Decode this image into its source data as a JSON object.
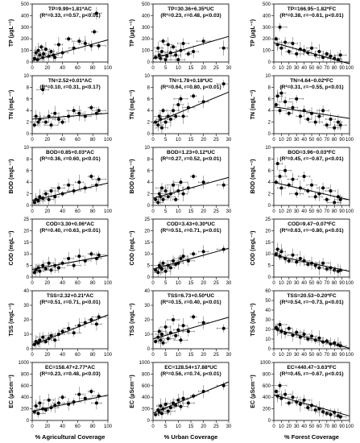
{
  "chart_data": [
    {
      "type": "scatter",
      "ylabel": "TP (μgL⁻¹)",
      "eq1": "TP=9.99+1.81*AC",
      "eq2": "(R²=0.33, r=0.57, p<0.01)",
      "xlim": [
        0,
        100
      ],
      "xticks": [
        0,
        20,
        40,
        60,
        80,
        100
      ],
      "ylim": [
        0,
        500
      ],
      "yticks": [
        0,
        100,
        200,
        300,
        400,
        500
      ],
      "x": [
        3,
        5,
        7,
        8,
        10,
        12,
        14,
        15,
        18,
        22,
        25,
        28,
        30,
        35,
        40,
        48,
        55,
        62,
        70,
        78,
        82,
        85,
        88
      ],
      "y": [
        30,
        80,
        20,
        100,
        60,
        130,
        40,
        70,
        110,
        50,
        90,
        60,
        40,
        150,
        80,
        200,
        120,
        180,
        160,
        140,
        260,
        420,
        140
      ],
      "line": [
        9.99,
        1.81
      ]
    },
    {
      "type": "scatter",
      "ylabel": "TP (μgL⁻¹)",
      "eq1": "TP=30.36+6.35*UC",
      "eq2": "(R²=0.23, r=0.48, p<0.03)",
      "xlim": [
        0,
        30
      ],
      "xticks": [
        0,
        5,
        10,
        15,
        20,
        25,
        30
      ],
      "ylim": [
        0,
        500
      ],
      "yticks": [
        0,
        100,
        200,
        300,
        400,
        500
      ],
      "x": [
        1,
        2,
        2.5,
        3,
        3.5,
        4,
        5,
        5.5,
        6,
        7,
        8,
        9,
        10,
        11,
        12,
        14,
        16,
        20,
        28
      ],
      "y": [
        40,
        120,
        60,
        30,
        90,
        180,
        20,
        50,
        150,
        80,
        130,
        60,
        20,
        100,
        160,
        70,
        90,
        180,
        120
      ],
      "line": [
        30.36,
        6.35
      ]
    },
    {
      "type": "scatter",
      "ylabel": "TP (μgL⁻¹)",
      "eq1": "TP=166.95−1.82*FC",
      "eq2": "(R²=0.38, r=−0.61, p<0.01)",
      "xlim": [
        0,
        100
      ],
      "xticks": [
        0,
        10,
        20,
        30,
        40,
        50,
        60,
        70,
        80,
        90,
        100
      ],
      "ylim": [
        0,
        500
      ],
      "yticks": [
        0,
        100,
        200,
        300,
        400,
        500
      ],
      "x": [
        3,
        5,
        8,
        10,
        15,
        20,
        25,
        30,
        35,
        40,
        45,
        50,
        55,
        60,
        65,
        70,
        75,
        80,
        85,
        88
      ],
      "y": [
        200,
        150,
        300,
        120,
        170,
        90,
        160,
        70,
        110,
        100,
        80,
        120,
        60,
        90,
        40,
        70,
        50,
        30,
        20,
        60
      ],
      "line": [
        166.95,
        -1.82
      ]
    },
    {
      "type": "scatter",
      "ylabel": "TN (mgL⁻¹)",
      "eq1": "TN=2.52+0.01*AC",
      "eq2": "(R²=0.10, r=0.31, p<0.17)",
      "xlim": [
        0,
        100
      ],
      "xticks": [
        0,
        20,
        40,
        60,
        80,
        100
      ],
      "ylim": [
        0,
        10
      ],
      "yticks": [
        0,
        2,
        4,
        6,
        8,
        10
      ],
      "x": [
        3,
        5,
        8,
        10,
        14,
        18,
        22,
        25,
        30,
        35,
        40,
        48,
        55,
        62,
        70,
        78,
        85,
        88
      ],
      "y": [
        1.5,
        3,
        2,
        2.5,
        7.6,
        2,
        3,
        1.5,
        3.5,
        2.5,
        2,
        3,
        4,
        3.5,
        3,
        4.5,
        3.5,
        4
      ],
      "line": [
        2.52,
        0.01
      ]
    },
    {
      "type": "scatter",
      "ylabel": "TN (mgL⁻¹)",
      "eq1": "TN=1.78+0.18*UC",
      "eq2": "(R²=0.64, r=0.80, p<0.01)",
      "xlim": [
        0,
        30
      ],
      "xticks": [
        0,
        5,
        10,
        15,
        20,
        25,
        30
      ],
      "ylim": [
        0,
        10
      ],
      "yticks": [
        0,
        2,
        4,
        6,
        8,
        10
      ],
      "x": [
        1,
        2,
        2.5,
        3,
        3.5,
        4,
        5,
        6,
        7,
        8,
        9,
        10,
        11,
        12,
        14,
        16,
        20,
        28
      ],
      "y": [
        2,
        1.5,
        3,
        2.5,
        1,
        4,
        2,
        3,
        2.5,
        4,
        3,
        5,
        6,
        3,
        4.5,
        6.5,
        5.5,
        8.6
      ],
      "line": [
        1.78,
        0.18
      ]
    },
    {
      "type": "scatter",
      "ylabel": "TN (mgL⁻¹)",
      "eq1": "TN=4.64−0.02*FC",
      "eq2": "(R²=0.31, r=−0.55, p<0.01)",
      "xlim": [
        0,
        100
      ],
      "xticks": [
        0,
        10,
        20,
        30,
        40,
        50,
        60,
        70,
        80,
        90,
        100
      ],
      "ylim": [
        0,
        10
      ],
      "yticks": [
        0,
        2,
        4,
        6,
        8,
        10
      ],
      "x": [
        3,
        5,
        8,
        10,
        15,
        20,
        25,
        30,
        35,
        40,
        45,
        50,
        55,
        60,
        65,
        70,
        75,
        80,
        85,
        88
      ],
      "y": [
        5,
        6.5,
        4,
        7,
        5.5,
        3.5,
        4.5,
        6,
        3,
        4,
        2.5,
        3.5,
        2,
        3,
        4,
        1.5,
        2.5,
        1,
        2,
        1.5
      ],
      "line": [
        4.64,
        -0.02
      ]
    },
    {
      "type": "scatter",
      "ylabel": "BOD (mgL⁻¹)",
      "eq1": "BOD=0.85+0.03*AC",
      "eq2": "(R²=0.36, r=0.60, p<0.01)",
      "xlim": [
        0,
        100
      ],
      "xticks": [
        0,
        20,
        40,
        60,
        80,
        100
      ],
      "ylim": [
        0,
        10
      ],
      "yticks": [
        0,
        2,
        4,
        6,
        8,
        10
      ],
      "x": [
        3,
        5,
        8,
        10,
        14,
        18,
        22,
        25,
        30,
        35,
        40,
        48,
        55,
        62,
        70,
        78,
        85,
        88
      ],
      "y": [
        0.5,
        1,
        0.8,
        1.5,
        1.2,
        2,
        1,
        2.5,
        1.5,
        3,
        2,
        3.5,
        2.5,
        4,
        3,
        5,
        3.5,
        4.5
      ],
      "line": [
        0.85,
        0.03
      ]
    },
    {
      "type": "scatter",
      "ylabel": "BOD (mgL⁻¹)",
      "eq1": "BOD=1.23+0.12*UC",
      "eq2": "(R²=0.27, r=0.52, p<0.01)",
      "xlim": [
        0,
        30
      ],
      "xticks": [
        0,
        5,
        10,
        15,
        20,
        25,
        30
      ],
      "ylim": [
        0,
        10
      ],
      "yticks": [
        0,
        2,
        4,
        6,
        8,
        10
      ],
      "x": [
        1,
        2,
        2.5,
        3,
        3.5,
        4,
        5,
        6,
        7,
        8,
        9,
        10,
        11,
        12,
        14,
        16,
        20,
        28
      ],
      "y": [
        1,
        0.5,
        2,
        1.5,
        3,
        1,
        2.5,
        1.5,
        2,
        3.5,
        1,
        2.5,
        4,
        2,
        3,
        5,
        4,
        3.5
      ],
      "line": [
        1.23,
        0.12
      ]
    },
    {
      "type": "scatter",
      "ylabel": "BOD (mgL⁻¹)",
      "eq1": "BOD=3.96−0.03*FC",
      "eq2": "(R²=0.45, r=−0.67, p<0.01)",
      "xlim": [
        0,
        100
      ],
      "xticks": [
        0,
        10,
        20,
        30,
        40,
        50,
        60,
        70,
        80,
        90,
        100
      ],
      "ylim": [
        0,
        10
      ],
      "yticks": [
        0,
        2,
        4,
        6,
        8,
        10
      ],
      "x": [
        3,
        5,
        8,
        10,
        15,
        20,
        25,
        30,
        35,
        40,
        45,
        50,
        55,
        60,
        65,
        70,
        75,
        80,
        85,
        88
      ],
      "y": [
        4,
        7.2,
        5,
        3,
        6,
        3.5,
        4.5,
        2,
        3,
        5,
        2.5,
        3.5,
        1.5,
        2,
        3,
        1,
        2.5,
        0.5,
        1.5,
        1
      ],
      "line": [
        3.96,
        -0.03
      ]
    },
    {
      "type": "scatter",
      "ylabel": "COD (mgL⁻¹)",
      "eq1": "COD=3.30+0.06*AC",
      "eq2": "(R²=0.40, r=0.63, p<0.01)",
      "xlim": [
        0,
        100
      ],
      "xticks": [
        0,
        20,
        40,
        60,
        80,
        100
      ],
      "ylim": [
        0,
        25
      ],
      "yticks": [
        0,
        5,
        10,
        15,
        20,
        25
      ],
      "x": [
        3,
        5,
        8,
        10,
        14,
        18,
        22,
        25,
        30,
        35,
        40,
        48,
        55,
        62,
        70,
        78,
        85,
        88
      ],
      "y": [
        2,
        3,
        4,
        2.5,
        5,
        3.5,
        6,
        3,
        5,
        4,
        6,
        8,
        5,
        9,
        7,
        10,
        8,
        9.5
      ],
      "line": [
        3.3,
        0.06
      ]
    },
    {
      "type": "scatter",
      "ylabel": "COD (mgL⁻¹)",
      "eq1": "COD=3.43+0.30*UC",
      "eq2": "(R²=0.51, r=0.71, p<0.01)",
      "xlim": [
        0,
        30
      ],
      "xticks": [
        0,
        5,
        10,
        15,
        20,
        25,
        30
      ],
      "ylim": [
        0,
        25
      ],
      "yticks": [
        0,
        5,
        10,
        15,
        20,
        25
      ],
      "x": [
        1,
        2,
        2.5,
        3,
        3.5,
        4,
        5,
        6,
        7,
        8,
        9,
        10,
        11,
        12,
        14,
        16,
        20,
        28
      ],
      "y": [
        3,
        2,
        5,
        4,
        3.5,
        6,
        2.5,
        5,
        4,
        7,
        5.5,
        6,
        8,
        9,
        7,
        10,
        11,
        12
      ],
      "line": [
        3.43,
        0.3
      ]
    },
    {
      "type": "scatter",
      "ylabel": "COD (mgL⁻¹)",
      "eq1": "COD=9.47−0.07*FC",
      "eq2": "(R²=0.63, r=−0.80, p<0.01)",
      "xlim": [
        0,
        100
      ],
      "xticks": [
        0,
        10,
        20,
        30,
        40,
        50,
        60,
        70,
        80,
        90,
        100
      ],
      "ylim": [
        0,
        25
      ],
      "yticks": [
        0,
        5,
        10,
        15,
        20,
        25
      ],
      "x": [
        3,
        5,
        8,
        10,
        15,
        20,
        25,
        30,
        35,
        40,
        45,
        50,
        55,
        60,
        65,
        70,
        75,
        80,
        85,
        88
      ],
      "y": [
        10,
        12,
        9,
        11,
        8,
        7,
        9.5,
        6.5,
        8,
        7,
        5.5,
        6,
        5,
        4,
        6,
        3.5,
        4,
        3,
        2.5,
        3
      ],
      "line": [
        9.47,
        -0.07
      ]
    },
    {
      "type": "scatter",
      "ylabel": "TSS (mgL⁻¹)",
      "eq1": "TSS=2.32+0.21*AC",
      "eq2": "(R²=0.51, r=0.71, p<0.01)",
      "xlim": [
        0,
        100
      ],
      "xticks": [
        0,
        20,
        40,
        60,
        80,
        100
      ],
      "ylim": [
        0,
        40
      ],
      "yticks": [
        0,
        10,
        20,
        30,
        40
      ],
      "x": [
        3,
        5,
        8,
        10,
        14,
        18,
        22,
        25,
        30,
        35,
        40,
        48,
        55,
        62,
        70,
        78,
        85,
        88
      ],
      "y": [
        3,
        5,
        4,
        6,
        8,
        5,
        7,
        9,
        6,
        10,
        12,
        14,
        11,
        16,
        18,
        20,
        17,
        22
      ],
      "line": [
        2.32,
        0.21
      ]
    },
    {
      "type": "scatter",
      "ylabel": "TSS (mgL⁻¹)",
      "eq1": "TSS=6.73+0.50*UC",
      "eq2": "(R²=0.15, r=0.40, p<0.01)",
      "xlim": [
        0,
        30
      ],
      "xticks": [
        0,
        5,
        10,
        15,
        20,
        25,
        30
      ],
      "ylim": [
        0,
        40
      ],
      "yticks": [
        0,
        10,
        20,
        30,
        40
      ],
      "x": [
        1,
        2,
        2.5,
        3,
        3.5,
        4,
        5,
        6,
        7,
        8,
        9,
        10,
        11,
        12,
        14,
        16,
        20,
        28
      ],
      "y": [
        5,
        8,
        12,
        6,
        10,
        4,
        15,
        7,
        11,
        20,
        9,
        13,
        6,
        16,
        12,
        22,
        18,
        14
      ],
      "line": [
        6.73,
        0.5
      ]
    },
    {
      "type": "scatter",
      "ylabel": "TSS (mgL⁻¹)",
      "eq1": "TSS=20.53−0.20*FC",
      "eq2": "(R²=0.54, r=−0.73, p<0.01)",
      "xlim": [
        0,
        100
      ],
      "xticks": [
        0,
        10,
        20,
        30,
        40,
        50,
        60,
        70,
        80,
        90,
        100
      ],
      "ylim": [
        0,
        60
      ],
      "yticks": [
        0,
        10,
        20,
        30,
        40,
        50,
        60
      ],
      "x": [
        3,
        5,
        8,
        10,
        15,
        20,
        25,
        30,
        35,
        40,
        45,
        50,
        55,
        60,
        65,
        70,
        75,
        80,
        85,
        88
      ],
      "y": [
        22,
        20,
        25,
        18,
        16,
        21,
        14,
        17,
        12,
        15,
        10,
        13,
        9,
        11,
        7,
        8,
        5,
        6,
        4,
        3
      ],
      "line": [
        20.53,
        -0.2
      ]
    },
    {
      "type": "scatter",
      "ylabel": "EC (μScm⁻¹)",
      "eq1": "EC=158.47+2.77*AC",
      "eq2": "(R²=0.23, r=0.48, p<0.03)",
      "xlim": [
        0,
        100
      ],
      "xticks": [
        0,
        20,
        40,
        60,
        80,
        100
      ],
      "ylim": [
        0,
        1000
      ],
      "yticks": [
        0,
        200,
        400,
        600,
        800,
        1000
      ],
      "x": [
        3,
        5,
        8,
        10,
        14,
        18,
        22,
        25,
        30,
        35,
        40,
        48,
        55,
        62,
        70,
        78,
        85,
        88
      ],
      "y": [
        150,
        250,
        120,
        300,
        200,
        180,
        350,
        220,
        260,
        300,
        400,
        280,
        320,
        450,
        380,
        500,
        300,
        420
      ],
      "line": [
        158.47,
        2.77
      ]
    },
    {
      "type": "scatter",
      "ylabel": "EC (μScm⁻¹)",
      "eq1": "EC=128.54+17.88*UC",
      "eq2": "(R²=0.56, r=0.74, p<0.01)",
      "xlim": [
        0,
        30
      ],
      "xticks": [
        0,
        5,
        10,
        15,
        20,
        25,
        30
      ],
      "ylim": [
        0,
        1000
      ],
      "yticks": [
        0,
        200,
        400,
        600,
        800,
        1000
      ],
      "x": [
        1,
        2,
        2.5,
        3,
        3.5,
        4,
        5,
        6,
        7,
        8,
        9,
        10,
        11,
        12,
        14,
        16,
        20,
        28
      ],
      "y": [
        100,
        180,
        140,
        250,
        120,
        200,
        280,
        160,
        220,
        300,
        260,
        350,
        240,
        380,
        300,
        420,
        500,
        600
      ],
      "line": [
        128.54,
        17.88
      ]
    },
    {
      "type": "scatter",
      "ylabel": "EC (μScm⁻¹)",
      "eq1": "EC=440.47−3.63*FC",
      "eq2": "(R²=0.45, r=−0.67, p<0.01)",
      "xlim": [
        0,
        100
      ],
      "xticks": [
        0,
        10,
        20,
        30,
        40,
        50,
        60,
        70,
        80,
        90,
        100
      ],
      "ylim": [
        0,
        1000
      ],
      "yticks": [
        0,
        200,
        400,
        600,
        800,
        1000
      ],
      "x": [
        3,
        5,
        8,
        10,
        15,
        20,
        25,
        30,
        35,
        40,
        45,
        50,
        55,
        60,
        65,
        70,
        75,
        80,
        85,
        88
      ],
      "y": [
        500,
        420,
        600,
        380,
        450,
        300,
        400,
        320,
        280,
        350,
        220,
        260,
        180,
        200,
        150,
        120,
        100,
        140,
        80,
        60
      ],
      "line": [
        440.47,
        -3.63
      ]
    }
  ],
  "xlabels": [
    "% Agricultural Coverage",
    "% Urban Coverage",
    "% Forest Coverage"
  ]
}
